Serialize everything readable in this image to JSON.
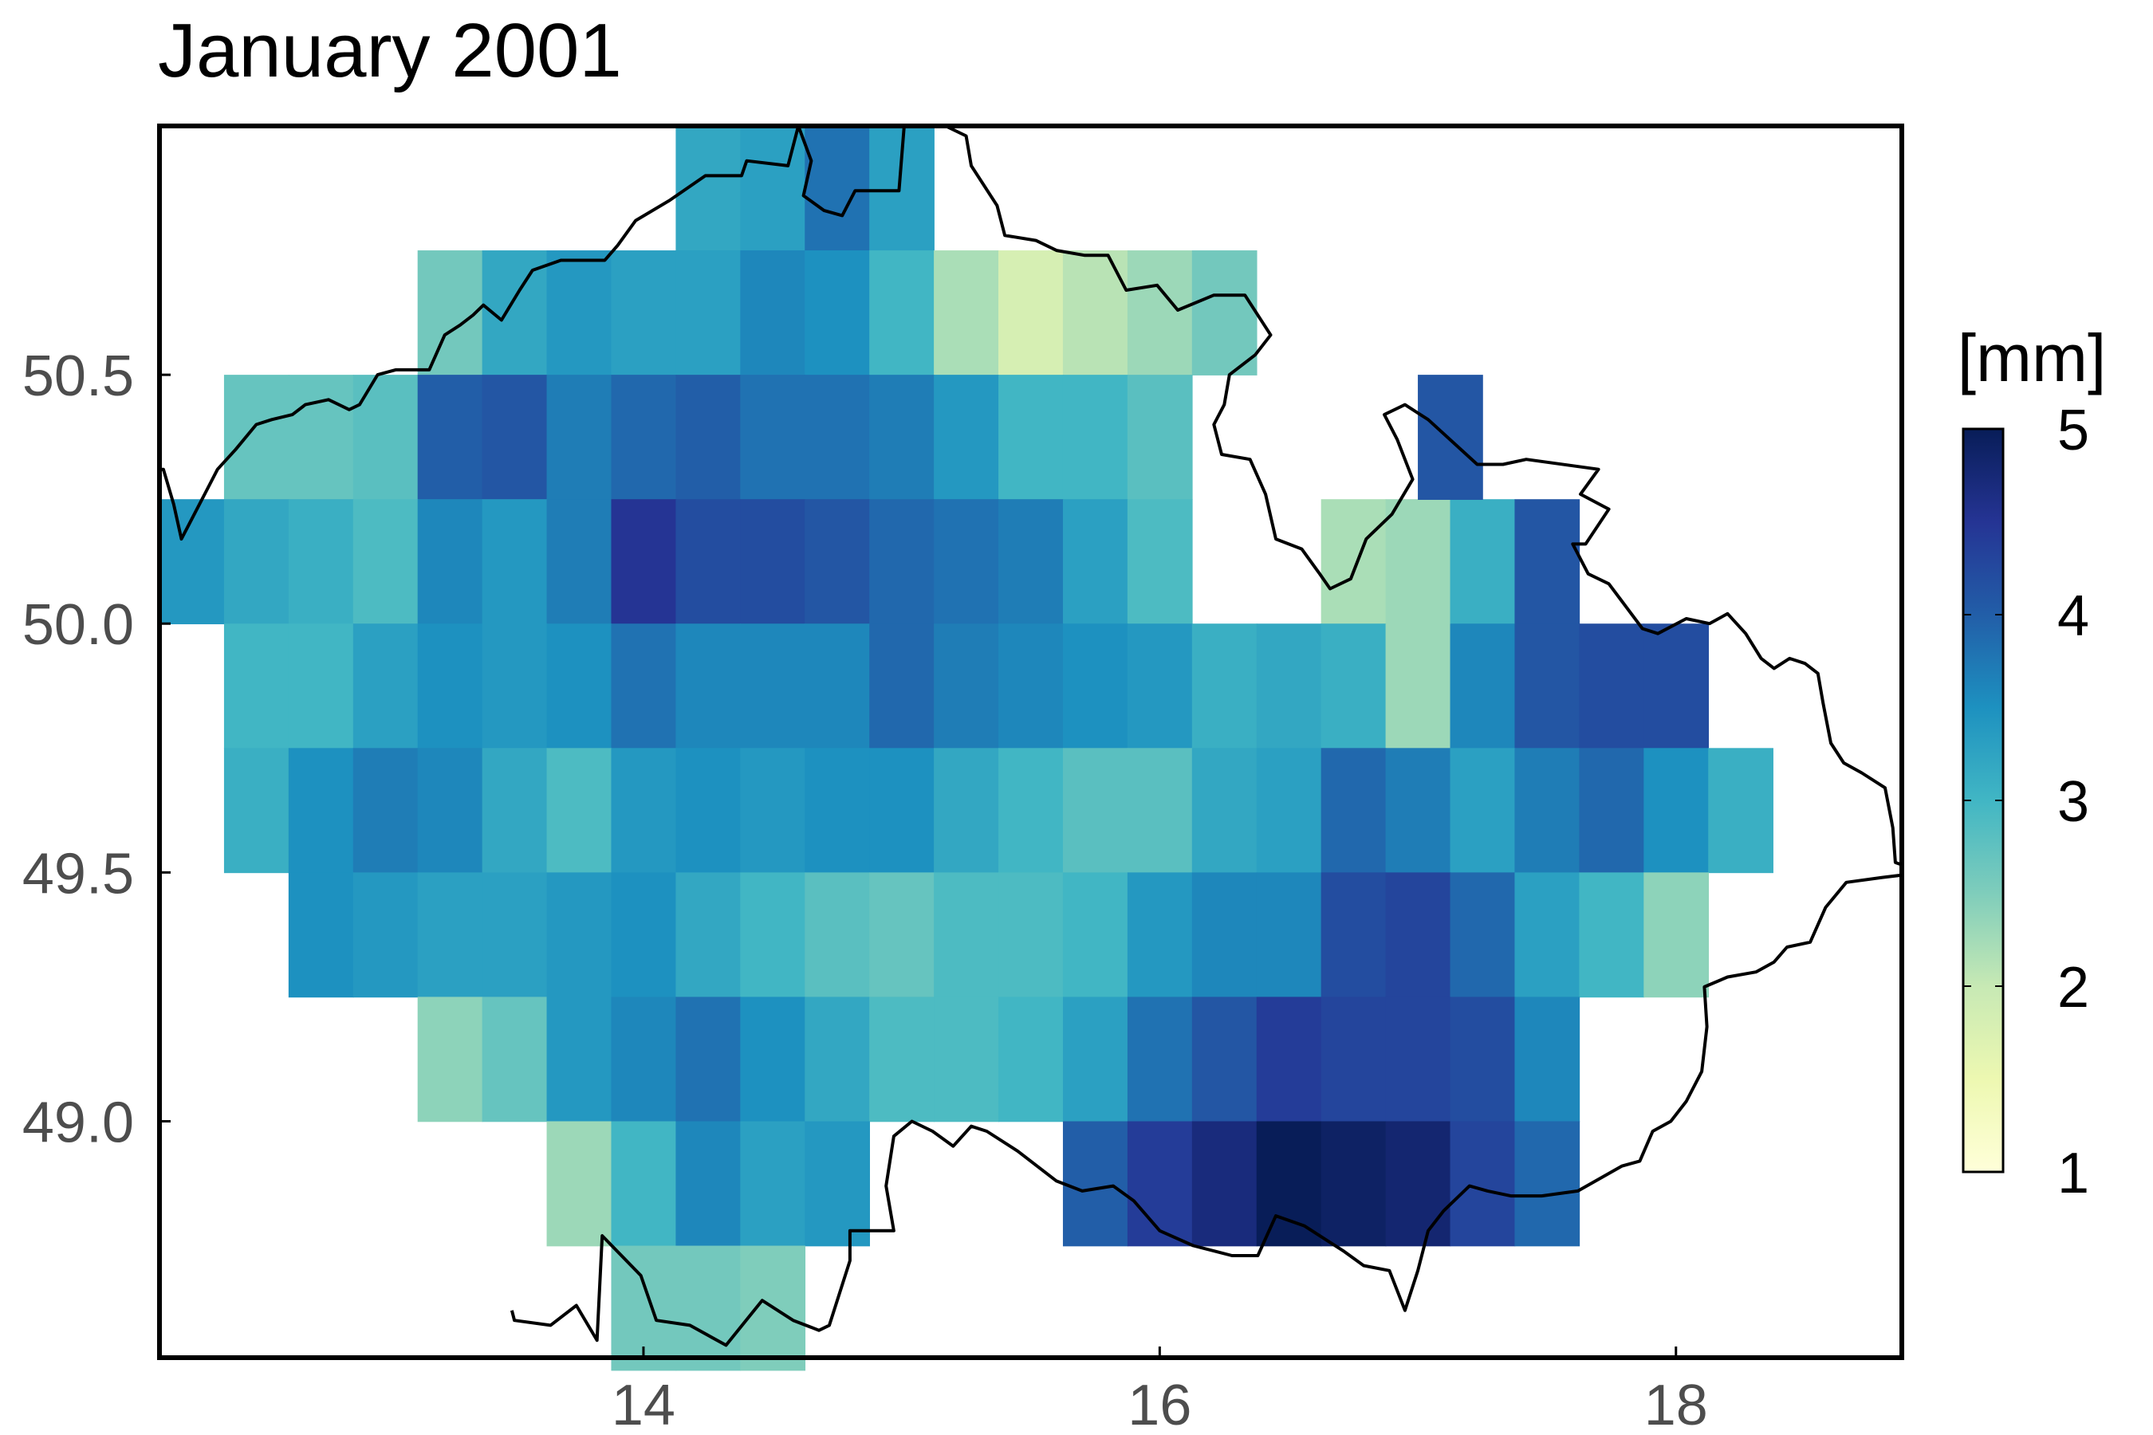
{
  "title": "January 2001",
  "colorbar": {
    "label": "[mm]",
    "min": 1,
    "max": 5,
    "ticks": [
      "1",
      "2",
      "3",
      "4",
      "5"
    ],
    "colors": [
      "#ffffd9",
      "#edf8b1",
      "#c7e9b4",
      "#7fcdbb",
      "#41b6c4",
      "#1d91c0",
      "#225ea8",
      "#253494",
      "#081d58"
    ]
  },
  "axes": {
    "xlim": [
      12.125,
      18.875
    ],
    "ylim": [
      48.525,
      51.0
    ],
    "xticks": [
      {
        "v": 14,
        "label": "14"
      },
      {
        "v": 16,
        "label": "16"
      },
      {
        "v": 18,
        "label": "18"
      }
    ],
    "yticks": [
      {
        "v": 49.0,
        "label": "49.0"
      },
      {
        "v": 49.5,
        "label": "49.5"
      },
      {
        "v": 50.0,
        "label": "50.0"
      },
      {
        "v": 50.5,
        "label": "50.5"
      }
    ],
    "grid": false
  },
  "chart_data": {
    "type": "heatmap",
    "title": "January 2001",
    "value_label": "[mm]",
    "cell_size_deg": 0.25,
    "rows": [
      {
        "lat": 50.875,
        "lon0": 14.25,
        "values": [
          3.2,
          3.3,
          3.8,
          3.3
        ]
      },
      {
        "lat": 50.625,
        "lon0": 13.25,
        "values": [
          2.6,
          3.2,
          3.4,
          3.3,
          3.3,
          3.6,
          3.5,
          3.0,
          2.2,
          1.8,
          2.1,
          2.3,
          2.6
        ]
      },
      {
        "lat": 50.375,
        "lon0": 12.5,
        "values": [
          2.7,
          2.7,
          2.8,
          4.0,
          4.1,
          3.7,
          3.9,
          4.0,
          3.8,
          3.8,
          3.7,
          3.4,
          3.0,
          3.0,
          2.8
        ]
      },
      {
        "lat": 50.125,
        "lon0": 12.25,
        "values": [
          3.4,
          3.2,
          3.1,
          2.9,
          3.6,
          3.4,
          3.7,
          4.5,
          4.2,
          4.2,
          4.1,
          3.9,
          3.8,
          3.7,
          3.3,
          2.9,
          null,
          null,
          2.2,
          2.3,
          3.1,
          4.1
        ]
      },
      {
        "lat": 50.875,
        "lon0": 17.0,
        "values": []
      },
      {
        "lat": 49.875,
        "lon0": 12.5,
        "values": [
          3.0,
          3.0,
          3.3,
          3.5,
          3.4,
          3.5,
          3.8,
          3.6,
          3.6,
          3.6,
          3.9,
          3.7,
          3.6,
          3.5,
          3.4,
          3.1,
          3.2,
          3.1,
          2.3,
          3.6,
          4.1,
          4.2,
          4.2
        ]
      },
      {
        "lat": 49.625,
        "lon0": 12.5,
        "values": [
          3.1,
          3.5,
          3.7,
          3.6,
          3.2,
          2.9,
          3.4,
          3.5,
          3.4,
          3.5,
          3.5,
          3.2,
          3.0,
          2.8,
          2.8,
          3.2,
          3.3,
          3.9,
          3.7,
          3.3,
          3.7,
          3.9,
          3.5,
          3.1
        ]
      },
      {
        "lat": 49.375,
        "lon0": 12.75,
        "values": [
          3.5,
          3.4,
          3.3,
          3.3,
          3.4,
          3.5,
          3.2,
          3.0,
          2.8,
          2.7,
          2.9,
          2.9,
          3.0,
          3.4,
          3.6,
          3.6,
          4.2,
          4.3,
          3.9,
          3.3,
          3.0,
          2.4
        ]
      },
      {
        "lat": 49.125,
        "lon0": 13.25,
        "values": [
          2.4,
          2.7,
          3.4,
          3.6,
          3.8,
          3.5,
          3.2,
          2.9,
          2.9,
          3.0,
          3.3,
          3.8,
          4.1,
          4.4,
          4.3,
          4.3,
          4.2,
          3.6
        ]
      },
      {
        "lat": 48.875,
        "lon0": 13.75,
        "values": [
          2.3,
          3.0,
          3.6,
          3.3,
          3.4,
          null,
          null,
          null,
          4.0,
          4.4,
          4.7,
          5.2,
          4.9,
          4.8,
          4.3,
          3.9
        ]
      },
      {
        "lat": 48.625,
        "lon0": 14.0,
        "values": [
          2.6,
          2.6,
          2.5
        ]
      }
    ],
    "extra_cells": [
      {
        "lat": 50.375,
        "lon": 17.125,
        "value": 4.1
      }
    ]
  },
  "border": [
    [
      12.1,
      50.31
    ],
    [
      12.14,
      50.31
    ],
    [
      12.18,
      50.24
    ],
    [
      12.21,
      50.17
    ],
    [
      12.24,
      50.2
    ],
    [
      12.29,
      50.25
    ],
    [
      12.35,
      50.31
    ],
    [
      12.42,
      50.35
    ],
    [
      12.5,
      50.4
    ],
    [
      12.56,
      50.41
    ],
    [
      12.64,
      50.42
    ],
    [
      12.69,
      50.44
    ],
    [
      12.78,
      50.45
    ],
    [
      12.86,
      50.43
    ],
    [
      12.9,
      50.44
    ],
    [
      12.97,
      50.5
    ],
    [
      13.04,
      50.51
    ],
    [
      13.17,
      50.51
    ],
    [
      13.23,
      50.58
    ],
    [
      13.29,
      50.6
    ],
    [
      13.34,
      50.62
    ],
    [
      13.38,
      50.64
    ],
    [
      13.45,
      50.61
    ],
    [
      13.52,
      50.67
    ],
    [
      13.57,
      50.71
    ],
    [
      13.68,
      50.73
    ],
    [
      13.85,
      50.73
    ],
    [
      13.9,
      50.76
    ],
    [
      13.97,
      50.81
    ],
    [
      14.1,
      50.85
    ],
    [
      14.24,
      50.9
    ],
    [
      14.38,
      50.9
    ],
    [
      14.4,
      50.93
    ],
    [
      14.56,
      50.92
    ],
    [
      14.6,
      51.0
    ],
    [
      14.65,
      50.93
    ],
    [
      14.62,
      50.86
    ],
    [
      14.7,
      50.83
    ],
    [
      14.77,
      50.82
    ],
    [
      14.82,
      50.87
    ],
    [
      14.9,
      50.87
    ],
    [
      14.99,
      50.87
    ],
    [
      15.01,
      51.0
    ],
    [
      15.17,
      51.0
    ],
    [
      15.25,
      50.98
    ],
    [
      15.27,
      50.92
    ],
    [
      15.37,
      50.84
    ],
    [
      15.4,
      50.78
    ],
    [
      15.52,
      50.77
    ],
    [
      15.6,
      50.75
    ],
    [
      15.71,
      50.74
    ],
    [
      15.8,
      50.74
    ],
    [
      15.87,
      50.67
    ],
    [
      15.99,
      50.68
    ],
    [
      16.07,
      50.63
    ],
    [
      16.21,
      50.66
    ],
    [
      16.33,
      50.66
    ],
    [
      16.43,
      50.58
    ],
    [
      16.37,
      50.54
    ],
    [
      16.27,
      50.5
    ],
    [
      16.25,
      50.44
    ],
    [
      16.21,
      50.4
    ],
    [
      16.24,
      50.34
    ],
    [
      16.35,
      50.33
    ],
    [
      16.41,
      50.26
    ],
    [
      16.45,
      50.17
    ],
    [
      16.55,
      50.15
    ],
    [
      16.62,
      50.1
    ],
    [
      16.66,
      50.07
    ],
    [
      16.74,
      50.09
    ],
    [
      16.8,
      50.17
    ],
    [
      16.9,
      50.22
    ],
    [
      16.98,
      50.29
    ],
    [
      16.92,
      50.37
    ],
    [
      16.87,
      50.42
    ],
    [
      16.95,
      50.44
    ],
    [
      17.04,
      50.41
    ],
    [
      17.23,
      50.32
    ],
    [
      17.33,
      50.32
    ],
    [
      17.42,
      50.33
    ],
    [
      17.7,
      50.31
    ],
    [
      17.63,
      50.26
    ],
    [
      17.74,
      50.23
    ],
    [
      17.65,
      50.16
    ],
    [
      17.6,
      50.16
    ],
    [
      17.66,
      50.1
    ],
    [
      17.74,
      50.08
    ],
    [
      17.87,
      49.99
    ],
    [
      17.93,
      49.98
    ],
    [
      18.04,
      50.01
    ],
    [
      18.13,
      50.0
    ],
    [
      18.2,
      50.02
    ],
    [
      18.27,
      49.98
    ],
    [
      18.33,
      49.93
    ],
    [
      18.38,
      49.91
    ],
    [
      18.44,
      49.93
    ],
    [
      18.5,
      49.92
    ],
    [
      18.55,
      49.9
    ],
    [
      18.57,
      49.84
    ],
    [
      18.6,
      49.76
    ],
    [
      18.65,
      49.72
    ],
    [
      18.72,
      49.7
    ],
    [
      18.81,
      49.67
    ],
    [
      18.84,
      49.59
    ],
    [
      18.85,
      49.52
    ],
    [
      18.96,
      49.5
    ],
    [
      18.8,
      49.49
    ],
    [
      18.66,
      49.48
    ],
    [
      18.58,
      49.43
    ],
    [
      18.52,
      49.36
    ],
    [
      18.43,
      49.35
    ],
    [
      18.38,
      49.32
    ],
    [
      18.31,
      49.3
    ],
    [
      18.2,
      49.29
    ],
    [
      18.11,
      49.27
    ],
    [
      18.12,
      49.19
    ],
    [
      18.1,
      49.1
    ],
    [
      18.04,
      49.04
    ],
    [
      17.98,
      49.0
    ],
    [
      17.91,
      48.98
    ],
    [
      17.86,
      48.92
    ],
    [
      17.79,
      48.91
    ],
    [
      17.62,
      48.86
    ],
    [
      17.48,
      48.85
    ],
    [
      17.36,
      48.85
    ],
    [
      17.27,
      48.86
    ],
    [
      17.2,
      48.87
    ],
    [
      17.1,
      48.82
    ],
    [
      17.04,
      48.78
    ],
    [
      17.0,
      48.7
    ],
    [
      16.95,
      48.62
    ],
    [
      16.89,
      48.7
    ],
    [
      16.79,
      48.71
    ],
    [
      16.71,
      48.74
    ],
    [
      16.56,
      48.79
    ],
    [
      16.45,
      48.81
    ],
    [
      16.38,
      48.73
    ],
    [
      16.28,
      48.73
    ],
    [
      16.13,
      48.75
    ],
    [
      16.0,
      48.78
    ],
    [
      15.9,
      48.84
    ],
    [
      15.82,
      48.87
    ],
    [
      15.7,
      48.86
    ],
    [
      15.6,
      48.88
    ],
    [
      15.55,
      48.9
    ],
    [
      15.45,
      48.94
    ],
    [
      15.33,
      48.98
    ],
    [
      15.27,
      48.99
    ],
    [
      15.2,
      48.95
    ],
    [
      15.12,
      48.98
    ],
    [
      15.04,
      49.0
    ],
    [
      14.97,
      48.97
    ],
    [
      14.94,
      48.87
    ],
    [
      14.97,
      48.78
    ],
    [
      14.8,
      48.78
    ],
    [
      14.8,
      48.72
    ],
    [
      14.72,
      48.59
    ],
    [
      14.68,
      48.58
    ],
    [
      14.58,
      48.6
    ],
    [
      14.46,
      48.64
    ],
    [
      14.32,
      48.55
    ],
    [
      14.18,
      48.59
    ],
    [
      14.05,
      48.6
    ],
    [
      13.99,
      48.69
    ],
    [
      13.84,
      48.77
    ],
    [
      13.82,
      48.56
    ],
    [
      13.74,
      48.63
    ],
    [
      13.64,
      48.59
    ],
    [
      13.5,
      48.6
    ],
    [
      13.49,
      48.62
    ]
  ]
}
